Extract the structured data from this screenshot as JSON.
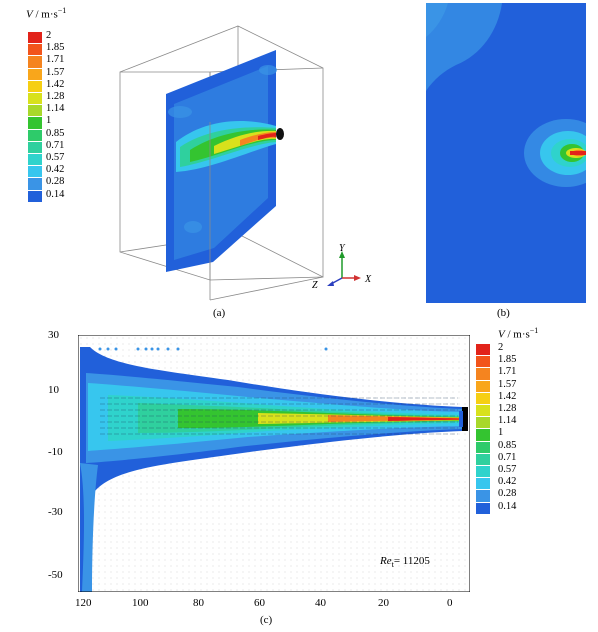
{
  "legend": {
    "title_var": "V",
    "title_unit": " / m·s",
    "title_exp": "−1",
    "levels": [
      "2",
      "1.85",
      "1.71",
      "1.57",
      "1.42",
      "1.28",
      "1.14",
      "1",
      "0.85",
      "0.71",
      "0.57",
      "0.42",
      "0.28",
      "0.14"
    ],
    "colors": [
      "#e2231a",
      "#f2541b",
      "#f5841f",
      "#f9a61b",
      "#f6cf13",
      "#d8e11c",
      "#a8d82a",
      "#34c430",
      "#2ecb6a",
      "#2fd09e",
      "#2fd3cc",
      "#37c6ee",
      "#3a94e6",
      "#2160da"
    ]
  },
  "panel_a": {
    "caption": "(a)",
    "axes": {
      "y": "Y",
      "z": "Z",
      "x": "X"
    }
  },
  "panel_b": {
    "caption": "(b)"
  },
  "panel_c": {
    "caption": "(c)",
    "reynolds_label": "Re",
    "reynolds_sub": "t",
    "reynolds_value": "= 11205",
    "y_ticks": [
      "30",
      "10",
      "-10",
      "-30",
      "-50"
    ],
    "x_ticks": [
      "120",
      "100",
      "80",
      "60",
      "40",
      "20",
      "0"
    ]
  }
}
